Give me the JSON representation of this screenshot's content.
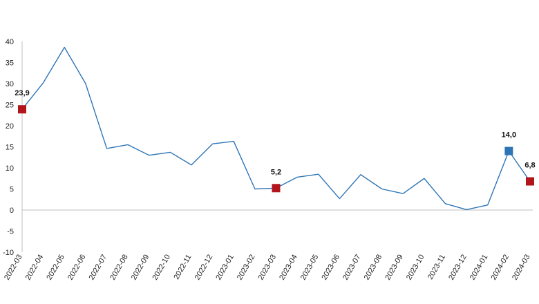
{
  "chart_data": {
    "type": "line",
    "title": "",
    "xlabel": "",
    "ylabel": "",
    "ylim": [
      -10,
      40
    ],
    "yticks": [
      -10,
      -5,
      0,
      5,
      10,
      15,
      20,
      25,
      30,
      35,
      40
    ],
    "ytick_labels": [
      "-10",
      "-5",
      "0",
      "5",
      "10",
      "15",
      "20",
      "25",
      "30",
      "35",
      "40"
    ],
    "grid": false,
    "legend": "none",
    "categories": [
      "2022-03",
      "2022-04",
      "2022-05",
      "2022-06",
      "2022-07",
      "2022-08",
      "2022-09",
      "2022-10",
      "2022-11",
      "2022-12",
      "2023-01",
      "2023-02",
      "2023-03",
      "2023-04",
      "2023-05",
      "2023-06",
      "2023-07",
      "2023-08",
      "2023-09",
      "2023-10",
      "2023-11",
      "2023-12",
      "2024-01",
      "2024-02",
      "2024-03"
    ],
    "series": [
      {
        "values": [
          23.9,
          30.2,
          38.6,
          30.0,
          14.6,
          15.5,
          13.0,
          13.7,
          10.7,
          15.7,
          16.3,
          5.0,
          5.2,
          7.8,
          8.5,
          2.7,
          8.4,
          5.0,
          3.9,
          7.5,
          1.5,
          0.1,
          1.2,
          14.0,
          6.8
        ],
        "color": "#2e75b6"
      }
    ],
    "highlighted_points": [
      {
        "category": "2022-03",
        "value": 23.9,
        "label": "23,9",
        "color": "#b3151d"
      },
      {
        "category": "2023-03",
        "value": 5.2,
        "label": "5,2",
        "color": "#b3151d"
      },
      {
        "category": "2024-02",
        "value": 14.0,
        "label": "14,0",
        "color": "#2e75b6"
      },
      {
        "category": "2024-03",
        "value": 6.8,
        "label": "6,8",
        "color": "#b3151d"
      }
    ]
  }
}
